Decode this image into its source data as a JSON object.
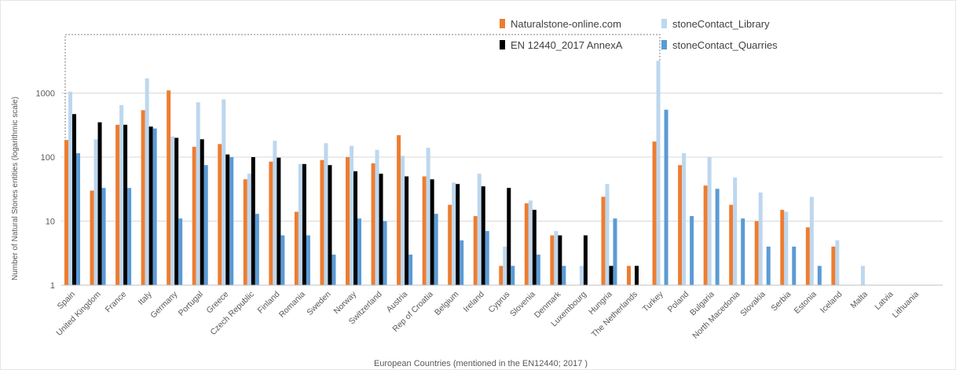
{
  "chart_data": {
    "type": "bar",
    "y_scale": "log",
    "ylim": [
      1,
      5000
    ],
    "yticks": [
      1,
      10,
      100,
      1000
    ],
    "ytick_labels": [
      "1",
      "10",
      "100",
      "1000"
    ],
    "ylabel": "Number of Natural Stones entities (logarithmic scale)",
    "xlabel": "European Countries (mentioned in the EN12440; 2017 )",
    "legend_position": "top-right",
    "categories": [
      "Spain",
      "United Kingdom",
      "France",
      "Italy",
      "Germany",
      "Portugal",
      "Greece",
      "Czech Republic",
      "Finland",
      "Romania",
      "Sweden",
      "Norway",
      "Switzerland",
      "Austria",
      "Rep of Croatia",
      "Belgium",
      "Ireland",
      "Cyprus",
      "Slovenia",
      "Denmark",
      "Luxembourg",
      "Hungria",
      "The Netherlands",
      "Turkey",
      "Poland",
      "Bulgaria",
      "North Macedonia",
      "Slovakia",
      "Serbia",
      "Estonia",
      "Iceland",
      "Malta",
      "Latvia",
      "Lithuania"
    ],
    "series": [
      {
        "name": "Naturalstone-online.com",
        "color": "#ed7d31",
        "values": [
          185,
          30,
          320,
          540,
          1100,
          145,
          160,
          45,
          85,
          14,
          90,
          100,
          80,
          220,
          50,
          18,
          12,
          2,
          19,
          6,
          null,
          24,
          2,
          175,
          75,
          36,
          18,
          10,
          15,
          8,
          4,
          null,
          null,
          null
        ]
      },
      {
        "name": "stoneContact_Library",
        "color": "#bdd7ee",
        "values": [
          1050,
          190,
          650,
          1700,
          210,
          720,
          800,
          55,
          180,
          78,
          165,
          150,
          130,
          105,
          140,
          40,
          55,
          4,
          21,
          7,
          2,
          38,
          null,
          3200,
          115,
          100,
          48,
          28,
          14,
          24,
          5,
          2,
          null,
          null
        ]
      },
      {
        "name": "EN 12440_2017 AnnexA",
        "color": "#000000",
        "values": [
          470,
          350,
          320,
          300,
          200,
          190,
          110,
          100,
          98,
          78,
          75,
          60,
          55,
          50,
          45,
          38,
          35,
          33,
          15,
          6,
          6,
          2,
          2,
          null,
          null,
          null,
          null,
          null,
          null,
          null,
          null,
          null,
          null,
          null
        ]
      },
      {
        "name": "stoneContact_Quarries",
        "color": "#5b9bd5",
        "values": [
          115,
          33,
          33,
          280,
          11,
          75,
          100,
          13,
          6,
          6,
          3,
          11,
          10,
          3,
          13,
          5,
          7,
          2,
          3,
          2,
          null,
          11,
          null,
          550,
          12,
          32,
          11,
          4,
          4,
          2,
          null,
          null,
          null,
          null
        ]
      }
    ]
  },
  "legend": {
    "items": [
      {
        "label": "Naturalstone-online.com",
        "color": "#ed7d31"
      },
      {
        "label": "stoneContact_Library",
        "color": "#bdd7ee"
      },
      {
        "label": "EN 12440_2017 AnnexA",
        "color": "#000000"
      },
      {
        "label": "stoneContact_Quarries",
        "color": "#5b9bd5"
      }
    ]
  },
  "colors": {
    "grid": "#d9d9d9",
    "box": "#7f7f7f",
    "text": "#595959"
  }
}
